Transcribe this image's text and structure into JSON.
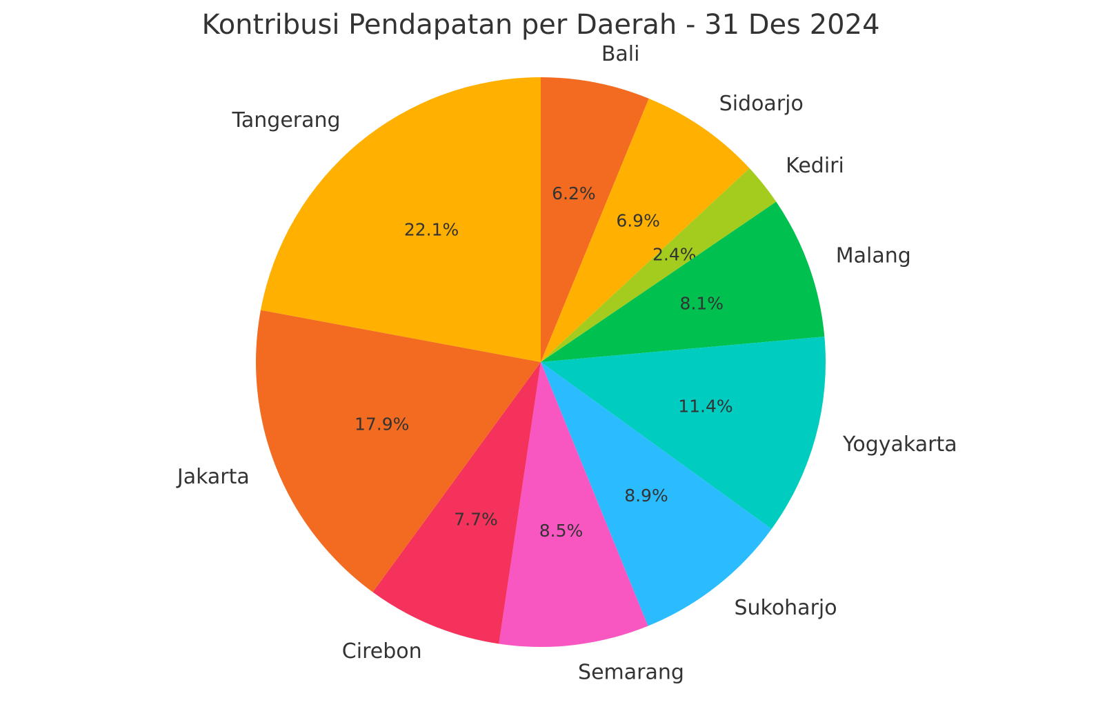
{
  "chart_data": {
    "type": "pie",
    "title": "Kontribusi Pendapatan per Daerah - 31 Des 2024",
    "categories": [
      "Bali",
      "Sidoarjo",
      "Kediri",
      "Malang",
      "Yogyakarta",
      "Sukoharjo",
      "Semarang",
      "Cirebon",
      "Jakarta",
      "Tangerang"
    ],
    "values": [
      6.2,
      6.9,
      2.4,
      8.1,
      11.4,
      8.9,
      8.5,
      7.7,
      17.9,
      22.1
    ],
    "value_labels": [
      "6.2%",
      "6.9%",
      "2.4%",
      "8.1%",
      "11.4%",
      "8.9%",
      "8.5%",
      "7.7%",
      "17.9%",
      "22.1%"
    ],
    "colors": [
      "#f26b21",
      "#ffb000",
      "#a3cc1f",
      "#00c050",
      "#00cdc0",
      "#2bbcff",
      "#f857c1",
      "#f5325b",
      "#f26b21",
      "#ffb000"
    ]
  }
}
